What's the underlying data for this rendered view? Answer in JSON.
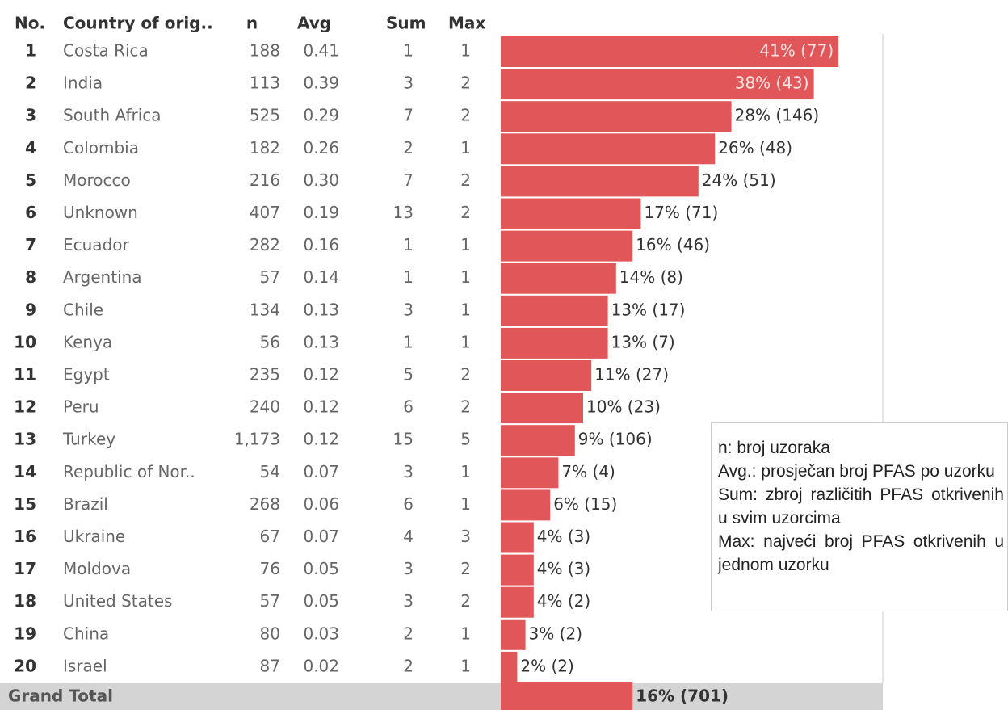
{
  "chart_data": {
    "type": "bar",
    "columns": [
      "No.",
      "Country of orig..",
      "n",
      "Avg",
      "Sum",
      "Max"
    ],
    "numbers": [
      "1",
      "2",
      "3",
      "4",
      "5",
      "6",
      "7",
      "8",
      "9",
      "10",
      "11",
      "12",
      "13",
      "14",
      "15",
      "16",
      "17",
      "18",
      "19",
      "20"
    ],
    "categories": [
      "Costa Rica",
      "India",
      "South Africa",
      "Colombia",
      "Morocco",
      "Unknown",
      "Ecuador",
      "Argentina",
      "Chile",
      "Kenya",
      "Egypt",
      "Peru",
      "Turkey",
      "Republic of Nor..",
      "Brazil",
      "Ukraine",
      "Moldova",
      "United States",
      "China",
      "Israel"
    ],
    "n": [
      "188",
      "113",
      "525",
      "182",
      "216",
      "407",
      "282",
      "57",
      "134",
      "56",
      "235",
      "240",
      "1,173",
      "54",
      "268",
      "67",
      "76",
      "57",
      "80",
      "87"
    ],
    "avg": [
      "0.41",
      "0.39",
      "0.29",
      "0.26",
      "0.30",
      "0.19",
      "0.16",
      "0.14",
      "0.13",
      "0.13",
      "0.12",
      "0.12",
      "0.12",
      "0.07",
      "0.06",
      "0.07",
      "0.05",
      "0.05",
      "0.03",
      "0.02"
    ],
    "sum": [
      "1",
      "3",
      "7",
      "2",
      "7",
      "13",
      "1",
      "1",
      "3",
      "1",
      "5",
      "6",
      "15",
      "3",
      "6",
      "4",
      "3",
      "3",
      "2",
      "2"
    ],
    "max": [
      "1",
      "2",
      "2",
      "1",
      "2",
      "2",
      "1",
      "1",
      "1",
      "1",
      "2",
      "2",
      "5",
      "1",
      "1",
      "3",
      "2",
      "2",
      "1",
      "1"
    ],
    "values": [
      41,
      38,
      28,
      26,
      24,
      17,
      16,
      14,
      13,
      13,
      11,
      10,
      9,
      7,
      6,
      4,
      4,
      4,
      3,
      2
    ],
    "value_labels": [
      "41% (77)",
      "38% (43)",
      "28% (146)",
      "26% (48)",
      "24% (51)",
      "17% (71)",
      "16% (46)",
      "14% (8)",
      "13% (17)",
      "13% (7)",
      "11% (27)",
      "10% (23)",
      "9% (106)",
      "7% (4)",
      "6% (15)",
      "4% (3)",
      "4% (3)",
      "4% (2)",
      "3% (2)",
      "2% (2)"
    ],
    "color": "#e15759",
    "total": {
      "label": "Grand Total",
      "value": 16,
      "value_label": "16% (701)"
    },
    "note": [
      "n: broj uzoraka",
      "Avg.: prosječan broj PFAS po uzorku",
      "Sum: zbroj različitih PFAS otkrivenih u svim uzorcima",
      "Max: najveći broj PFAS otkrivenih u jednom uzorku"
    ]
  }
}
